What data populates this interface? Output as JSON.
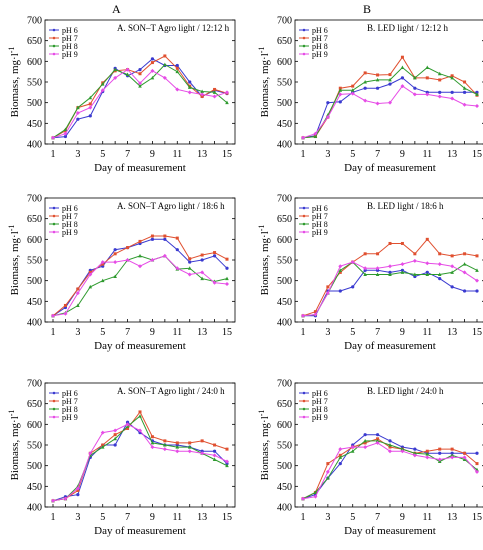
{
  "column_labels": [
    "A",
    "B"
  ],
  "colors": {
    "pH 6": "#3a3ad0",
    "pH 7": "#e05030",
    "pH 8": "#2e9a2e",
    "pH 9": "#e64ce6"
  },
  "chart_data": [
    {
      "type": "line",
      "title": "A. SON–T Agro light / 12:12 h",
      "xlabel": "Day of measurement",
      "ylabel": "Biomass, mg·l",
      "ylabel_sup": "-1",
      "x": [
        1,
        2,
        3,
        4,
        5,
        6,
        7,
        8,
        9,
        10,
        11,
        12,
        13,
        14,
        15
      ],
      "xticks": [
        1,
        3,
        5,
        7,
        9,
        11,
        13,
        15
      ],
      "yticks": [
        400,
        450,
        500,
        550,
        600,
        650,
        700
      ],
      "ylim": [
        400,
        700
      ],
      "grid": false,
      "legend": "top-left",
      "series": [
        {
          "name": "pH 6",
          "values": [
            415,
            418,
            460,
            468,
            527,
            583,
            565,
            580,
            606,
            590,
            590,
            550,
            515,
            530,
            522
          ]
        },
        {
          "name": "pH 7",
          "values": [
            415,
            432,
            488,
            497,
            548,
            577,
            580,
            570,
            597,
            613,
            583,
            540,
            515,
            532,
            523
          ]
        },
        {
          "name": "pH 8",
          "values": [
            415,
            435,
            488,
            512,
            545,
            580,
            568,
            540,
            560,
            592,
            575,
            537,
            527,
            525,
            500
          ]
        },
        {
          "name": "pH 9",
          "values": [
            415,
            425,
            475,
            488,
            530,
            560,
            580,
            547,
            577,
            560,
            532,
            525,
            520,
            515,
            525
          ]
        }
      ]
    },
    {
      "type": "line",
      "title": "B. LED light / 12:12 h",
      "xlabel": "Day of measurement",
      "ylabel": "Biomass, mg·l",
      "ylabel_sup": "-1",
      "x": [
        1,
        2,
        3,
        4,
        5,
        6,
        7,
        8,
        9,
        10,
        11,
        12,
        13,
        14,
        15
      ],
      "xticks": [
        1,
        3,
        5,
        7,
        9,
        11,
        13,
        15
      ],
      "yticks": [
        400,
        450,
        500,
        550,
        600,
        650,
        700
      ],
      "ylim": [
        400,
        700
      ],
      "grid": false,
      "legend": "top-left",
      "series": [
        {
          "name": "pH 6",
          "values": [
            415,
            420,
            500,
            502,
            525,
            535,
            535,
            545,
            560,
            535,
            525,
            525,
            525,
            525,
            525
          ]
        },
        {
          "name": "pH 7",
          "values": [
            415,
            418,
            465,
            535,
            540,
            572,
            567,
            568,
            610,
            560,
            560,
            555,
            565,
            550,
            518
          ]
        },
        {
          "name": "pH 8",
          "values": [
            415,
            418,
            470,
            530,
            530,
            550,
            555,
            555,
            585,
            560,
            585,
            570,
            560,
            535,
            520
          ]
        },
        {
          "name": "pH 9",
          "values": [
            415,
            425,
            465,
            520,
            522,
            505,
            498,
            500,
            540,
            520,
            520,
            515,
            510,
            495,
            492
          ]
        }
      ]
    },
    {
      "type": "line",
      "title": "A. SON–T Agro light / 18:6 h",
      "xlabel": "Day of measurement",
      "ylabel": "Biomass, mg·l",
      "ylabel_sup": "-1",
      "x": [
        1,
        2,
        3,
        4,
        5,
        6,
        7,
        8,
        9,
        10,
        11,
        12,
        13,
        14,
        15
      ],
      "xticks": [
        1,
        3,
        5,
        7,
        9,
        11,
        13,
        15
      ],
      "yticks": [
        400,
        450,
        500,
        550,
        600,
        650,
        700
      ],
      "ylim": [
        400,
        700
      ],
      "grid": false,
      "legend": "top-left",
      "series": [
        {
          "name": "pH 6",
          "values": [
            415,
            435,
            480,
            525,
            535,
            575,
            580,
            590,
            600,
            600,
            575,
            545,
            550,
            560,
            530
          ]
        },
        {
          "name": "pH 7",
          "values": [
            415,
            440,
            480,
            520,
            540,
            565,
            580,
            595,
            608,
            608,
            603,
            553,
            562,
            568,
            552
          ]
        },
        {
          "name": "pH 8",
          "values": [
            415,
            422,
            440,
            485,
            500,
            510,
            550,
            560,
            550,
            560,
            528,
            530,
            505,
            498,
            505
          ]
        },
        {
          "name": "pH 9",
          "values": [
            415,
            420,
            470,
            515,
            545,
            545,
            550,
            535,
            550,
            560,
            530,
            515,
            520,
            495,
            492
          ]
        }
      ]
    },
    {
      "type": "line",
      "title": "B. LED light / 18:6 h",
      "xlabel": "Day of measurement",
      "ylabel": "Biomass, mg·l",
      "ylabel_sup": "-1",
      "x": [
        1,
        2,
        3,
        4,
        5,
        6,
        7,
        8,
        9,
        10,
        11,
        12,
        13,
        14,
        15
      ],
      "xticks": [
        1,
        3,
        5,
        7,
        9,
        11,
        13,
        15
      ],
      "yticks": [
        400,
        450,
        500,
        550,
        600,
        650,
        700
      ],
      "ylim": [
        400,
        700
      ],
      "grid": false,
      "legend": "top-left",
      "series": [
        {
          "name": "pH 6",
          "values": [
            415,
            415,
            475,
            475,
            485,
            525,
            525,
            520,
            525,
            510,
            520,
            505,
            485,
            475,
            475
          ]
        },
        {
          "name": "pH 7",
          "values": [
            415,
            425,
            485,
            520,
            545,
            565,
            565,
            590,
            590,
            565,
            600,
            565,
            560,
            565,
            560
          ]
        },
        {
          "name": "pH 8",
          "values": [
            415,
            418,
            470,
            525,
            545,
            515,
            515,
            515,
            520,
            515,
            515,
            515,
            520,
            540,
            525
          ]
        },
        {
          "name": "pH 9",
          "values": [
            415,
            418,
            470,
            535,
            545,
            530,
            530,
            535,
            540,
            548,
            542,
            540,
            535,
            520,
            500
          ]
        }
      ]
    },
    {
      "type": "line",
      "title": "A. SON–T Agro light / 24:0 h",
      "xlabel": "Day of measurement",
      "ylabel": "Biomass, mg·l",
      "ylabel_sup": "-1",
      "x": [
        1,
        2,
        3,
        4,
        5,
        6,
        7,
        8,
        9,
        10,
        11,
        12,
        13,
        14,
        15
      ],
      "xticks": [
        1,
        3,
        5,
        7,
        9,
        11,
        13,
        15
      ],
      "yticks": [
        400,
        450,
        500,
        550,
        600,
        650,
        700
      ],
      "ylim": [
        400,
        700
      ],
      "grid": false,
      "legend": "top-left",
      "series": [
        {
          "name": "pH 6",
          "values": [
            415,
            425,
            430,
            520,
            550,
            550,
            605,
            580,
            560,
            550,
            550,
            545,
            535,
            535,
            505
          ]
        },
        {
          "name": "pH 7",
          "values": [
            415,
            420,
            440,
            530,
            550,
            575,
            590,
            630,
            570,
            560,
            555,
            555,
            560,
            550,
            540
          ]
        },
        {
          "name": "pH 8",
          "values": [
            415,
            420,
            450,
            525,
            545,
            565,
            595,
            620,
            555,
            550,
            545,
            545,
            530,
            515,
            500
          ]
        },
        {
          "name": "pH 9",
          "values": [
            415,
            420,
            445,
            530,
            580,
            585,
            600,
            585,
            545,
            540,
            535,
            535,
            530,
            525,
            510
          ]
        }
      ]
    },
    {
      "type": "line",
      "title": "B. LED light / 24:0 h",
      "xlabel": "Day of measurement",
      "ylabel": "Biomass, mg·l",
      "ylabel_sup": "-1",
      "x": [
        1,
        2,
        3,
        4,
        5,
        6,
        7,
        8,
        9,
        10,
        11,
        12,
        13,
        14,
        15
      ],
      "xticks": [
        1,
        3,
        5,
        7,
        9,
        11,
        13,
        15
      ],
      "yticks": [
        400,
        450,
        500,
        550,
        600,
        650,
        700
      ],
      "ylim": [
        400,
        700
      ],
      "grid": false,
      "legend": "top-left",
      "series": [
        {
          "name": "pH 6",
          "values": [
            420,
            430,
            470,
            505,
            550,
            575,
            575,
            560,
            545,
            540,
            530,
            530,
            530,
            530,
            530
          ]
        },
        {
          "name": "pH 7",
          "values": [
            420,
            435,
            505,
            525,
            545,
            555,
            565,
            545,
            540,
            530,
            535,
            540,
            540,
            530,
            505
          ]
        },
        {
          "name": "pH 8",
          "values": [
            420,
            435,
            470,
            520,
            535,
            560,
            560,
            550,
            540,
            530,
            528,
            510,
            525,
            515,
            490
          ]
        },
        {
          "name": "pH 9",
          "values": [
            420,
            425,
            485,
            540,
            545,
            545,
            555,
            535,
            535,
            525,
            520,
            515,
            520,
            520,
            485
          ]
        }
      ]
    }
  ]
}
